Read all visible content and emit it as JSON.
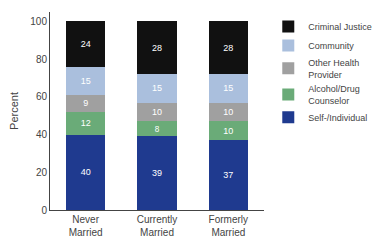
{
  "chart_data": {
    "type": "bar",
    "stacked": true,
    "data_labels": true,
    "categories": [
      "Never\nMarried",
      "Currently\nMarried",
      "Formerly\nMarried"
    ],
    "series": [
      {
        "name": "Self-/Individual",
        "values": [
          40,
          39,
          37
        ],
        "color": "#1f3a8f"
      },
      {
        "name": "Alcohol/Drug\nCounselor",
        "values": [
          12,
          8,
          10
        ],
        "color": "#6aab78"
      },
      {
        "name": "Other Health\nProvider",
        "values": [
          9,
          10,
          10
        ],
        "color": "#a0a0a0"
      },
      {
        "name": "Community",
        "values": [
          15,
          15,
          15
        ],
        "color": "#aabfdd"
      },
      {
        "name": "Criminal Justice",
        "values": [
          24,
          28,
          28
        ],
        "color": "#111111"
      }
    ],
    "ylabel": "Percent",
    "ylim": [
      0,
      105
    ],
    "yticks": [
      0,
      20,
      40,
      60,
      80,
      100
    ],
    "grid": false,
    "legend": "right"
  }
}
